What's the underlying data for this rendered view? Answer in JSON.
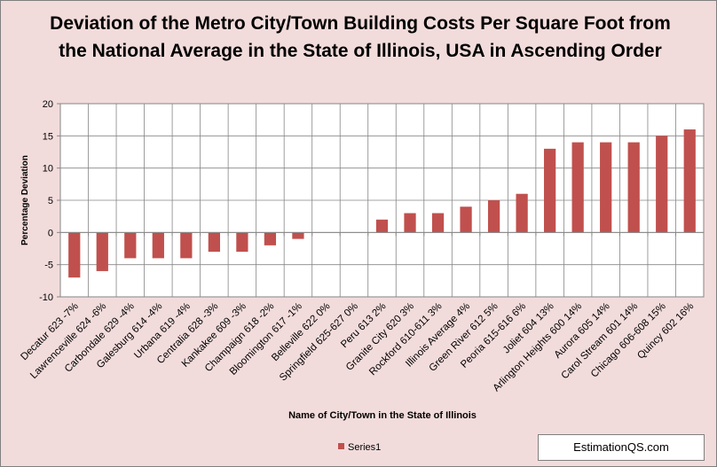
{
  "chart_data": {
    "type": "bar",
    "title": "Deviation of the Metro City/Town Building Costs Per Square Foot from the National Average in the State of Illinois, USA in Ascending Order",
    "xlabel": "Name of City/Town in the State of Illinois",
    "ylabel": "Percentage Deviation",
    "ylim": [
      -10,
      20
    ],
    "yticks": [
      -10,
      -5,
      0,
      5,
      10,
      15,
      20
    ],
    "grid": true,
    "legend_position": "bottom",
    "bar_color": "#c0504d",
    "categories": [
      "Decatur 623 -7%",
      "Lawrenceville 624 -6%",
      "Carbondale 629 -4%",
      "Galesburg 614 -4%",
      "Urbana 619 -4%",
      "Centralia 628 -3%",
      "Kankakee 609 -3%",
      "Champaign 618 -2%",
      "Bloomington 617 -1%",
      "Belleville 622 0%",
      "Springfield 625-627 0%",
      "Peru 613 2%",
      "Granite City 620 3%",
      "Rockford 610-611 3%",
      "Illinois Average 4%",
      "Green River 612 5%",
      "Peoria 615-616 6%",
      "Joliet 604 13%",
      "Arlington Heights 600 14%",
      "Aurora 605 14%",
      "Carol Stream 601 14%",
      "Chicago 606-608 15%",
      "Quincy 602 16%"
    ],
    "series": [
      {
        "name": "Series1",
        "values": [
          -7,
          -6,
          -4,
          -4,
          -4,
          -3,
          -3,
          -2,
          -1,
          0,
          0,
          2,
          3,
          3,
          4,
          5,
          6,
          13,
          14,
          14,
          14,
          15,
          16
        ]
      }
    ]
  },
  "watermark": "EstimationQS.com"
}
